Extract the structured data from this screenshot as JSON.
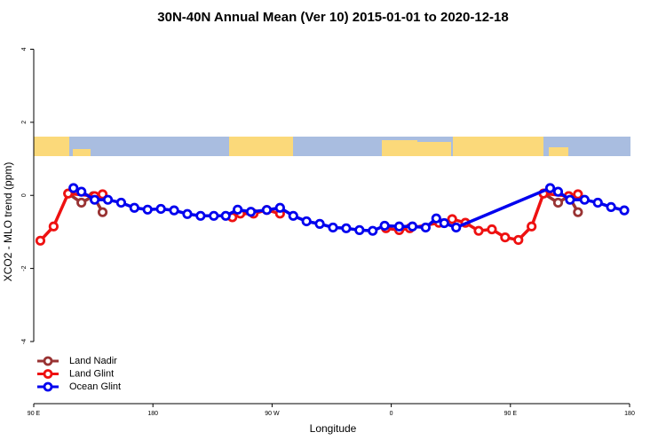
{
  "chart_data": {
    "type": "line",
    "title": "30N-40N Annual Mean (Ver 10)   2015-01-01 to 2020-12-18",
    "x_label": "Longitude",
    "y_label": "XCO2 - MLO trend (ppm)",
    "xlim": [
      90,
      540
    ],
    "ylim": [
      -5.7,
      4.4
    ],
    "xticks": [
      {
        "value": 90,
        "label": "90 E"
      },
      180,
      {
        "value": 270,
        "label": "90 W"
      },
      {
        "value": 360,
        "label": "0"
      },
      {
        "value": 450,
        "label": "90 E"
      },
      {
        "value": 540,
        "label": "180"
      }
    ],
    "yticks": [
      -4,
      -2,
      0,
      2,
      4
    ],
    "legend": "bottom-left",
    "series": [
      {
        "name": "Land Nadir",
        "color": "#993333",
        "x": [
          116,
          126,
          135,
          142,
          null,
          475,
          486,
          494,
          501
        ],
        "values": [
          0.05,
          -0.2,
          -0.02,
          -0.46,
          null,
          0.05,
          -0.2,
          -0.02,
          -0.46
        ]
      },
      {
        "name": "Land Glint",
        "color": "#ee1111",
        "x": [
          95,
          105,
          116,
          136,
          142,
          null,
          240,
          246,
          256,
          266,
          276,
          null,
          356,
          366,
          374,
          396,
          406,
          416,
          426,
          436,
          446,
          456,
          466,
          475,
          494,
          501
        ],
        "values": [
          -1.24,
          -0.85,
          0.05,
          -0.02,
          0.03,
          null,
          -0.6,
          -0.5,
          -0.5,
          -0.4,
          -0.5,
          null,
          -0.9,
          -0.95,
          -0.9,
          -0.75,
          -0.65,
          -0.75,
          -0.97,
          -0.93,
          -1.15,
          -1.22,
          -0.85,
          0.05,
          -0.02,
          0.03
        ]
      },
      {
        "name": "Ocean Glint",
        "color": "#0000ee",
        "x": [
          120,
          126,
          136,
          146,
          156,
          166,
          176,
          186,
          196,
          206,
          216,
          226,
          235,
          244,
          254,
          266,
          276,
          286,
          296,
          306,
          316,
          326,
          336,
          346,
          355,
          366,
          376,
          386,
          394,
          400,
          409,
          480,
          486,
          495,
          506,
          516,
          526,
          536
        ],
        "values": [
          0.2,
          0.1,
          -0.12,
          -0.12,
          -0.2,
          -0.34,
          -0.39,
          -0.37,
          -0.41,
          -0.51,
          -0.56,
          -0.56,
          -0.56,
          -0.39,
          -0.45,
          -0.4,
          -0.34,
          -0.56,
          -0.71,
          -0.78,
          -0.88,
          -0.9,
          -0.95,
          -0.97,
          -0.83,
          -0.85,
          -0.85,
          -0.88,
          -0.63,
          -0.76,
          -0.88,
          0.2,
          0.1,
          -0.12,
          -0.12,
          -0.2,
          -0.32,
          -0.41
        ]
      }
    ]
  }
}
